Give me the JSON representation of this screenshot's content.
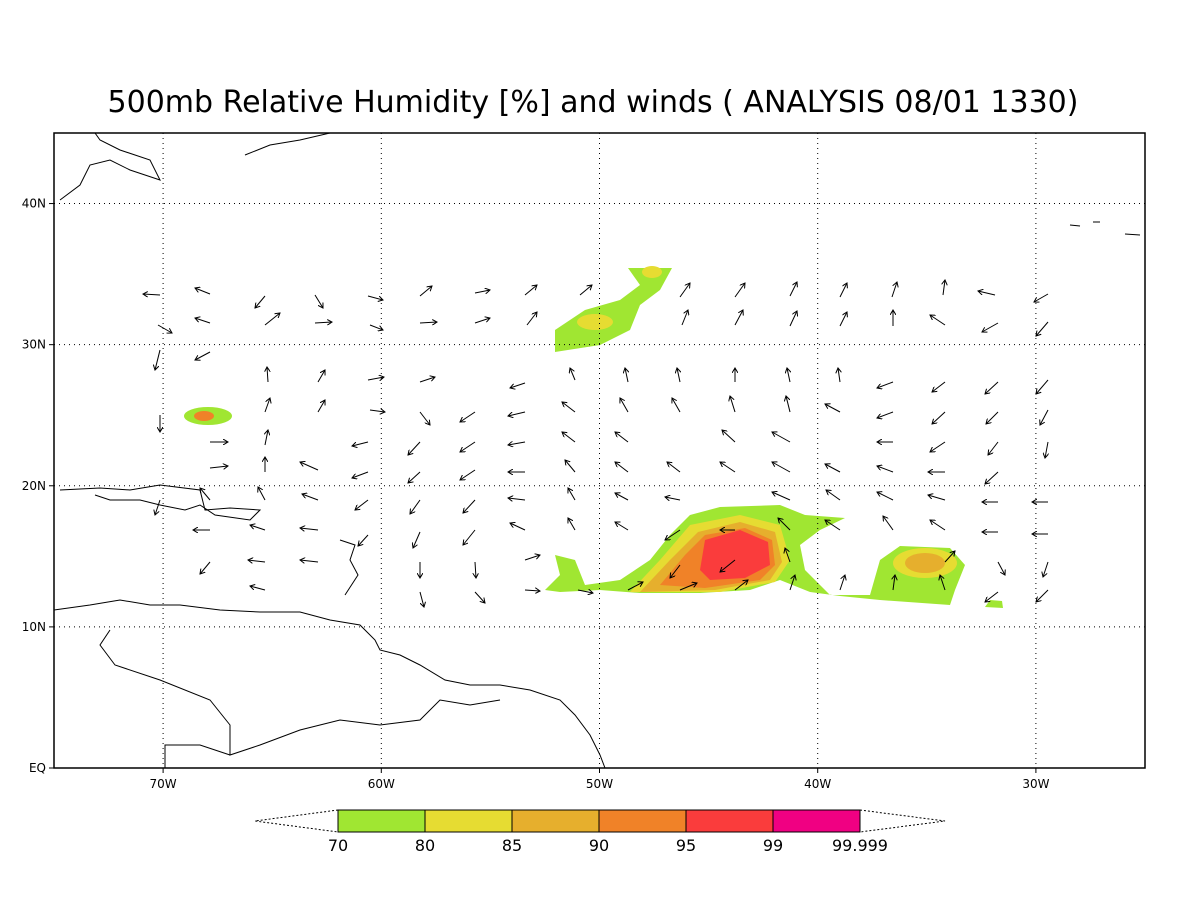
{
  "title": "500mb Relative Humidity [%] and winds ( ANALYSIS 08/01 1330)",
  "lon_ticks": [
    {
      "value": -70,
      "label": "70W"
    },
    {
      "value": -60,
      "label": "60W"
    },
    {
      "value": -50,
      "label": "50W"
    },
    {
      "value": -40,
      "label": "40W"
    },
    {
      "value": -30,
      "label": "30W"
    }
  ],
  "lat_ticks": [
    {
      "value": 0,
      "label": "EQ"
    },
    {
      "value": 10,
      "label": "10N"
    },
    {
      "value": 20,
      "label": "20N"
    },
    {
      "value": 30,
      "label": "30N"
    },
    {
      "value": 40,
      "label": "40N"
    }
  ],
  "lon_range": [
    -75,
    -25
  ],
  "lat_range": [
    0,
    45
  ],
  "colorbar": {
    "levels": [
      70,
      80,
      85,
      90,
      95,
      99,
      99.999
    ],
    "colors": [
      "#a0e632",
      "#e6dc32",
      "#e6af2d",
      "#f08228",
      "#fa3c3c",
      "#f00082"
    ]
  }
}
